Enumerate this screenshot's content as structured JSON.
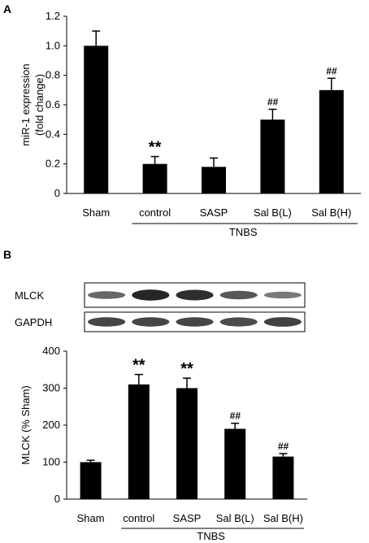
{
  "panels": {
    "a": {
      "label": "A"
    },
    "b": {
      "label": "B"
    }
  },
  "blot": {
    "rows": [
      {
        "label": "MLCK",
        "intensity": [
          0.55,
          0.95,
          0.9,
          0.65,
          0.45
        ]
      },
      {
        "label": "GAPDH",
        "intensity": [
          0.75,
          0.75,
          0.75,
          0.72,
          0.78
        ]
      }
    ]
  },
  "chart_data": [
    {
      "type": "bar",
      "categories": [
        "Sham",
        "control",
        "SASP",
        "Sal B(L)",
        "Sal B(H)"
      ],
      "values": [
        1.0,
        0.2,
        0.18,
        0.5,
        0.7
      ],
      "errors": [
        0.1,
        0.05,
        0.06,
        0.07,
        0.08
      ],
      "annotations": [
        "",
        "**",
        "",
        "##",
        "##"
      ],
      "group_label": "TNBS",
      "group_categories": [
        1,
        4
      ],
      "ylabel": [
        "miR-1 expression",
        "(fold change)"
      ],
      "yticks": [
        "0",
        "0.2",
        "0.4",
        "0.6",
        "0.8",
        "1.0",
        "1.2"
      ],
      "ylim": [
        0,
        1.2
      ],
      "bar_color": "#000000"
    },
    {
      "type": "bar",
      "categories": [
        "Sham",
        "control",
        "SASP",
        "Sal B(L)",
        "Sal B(H)"
      ],
      "values": [
        100,
        310,
        300,
        190,
        115
      ],
      "errors": [
        5,
        27,
        27,
        15,
        8
      ],
      "annotations": [
        "",
        "**",
        "**",
        "##",
        "##"
      ],
      "group_label": "TNBS",
      "group_categories": [
        1,
        4
      ],
      "ylabel": [
        "MLCK (% Sham)"
      ],
      "yticks": [
        "0",
        "100",
        "200",
        "300",
        "400"
      ],
      "ylim": [
        0,
        400
      ],
      "bar_color": "#000000"
    }
  ]
}
